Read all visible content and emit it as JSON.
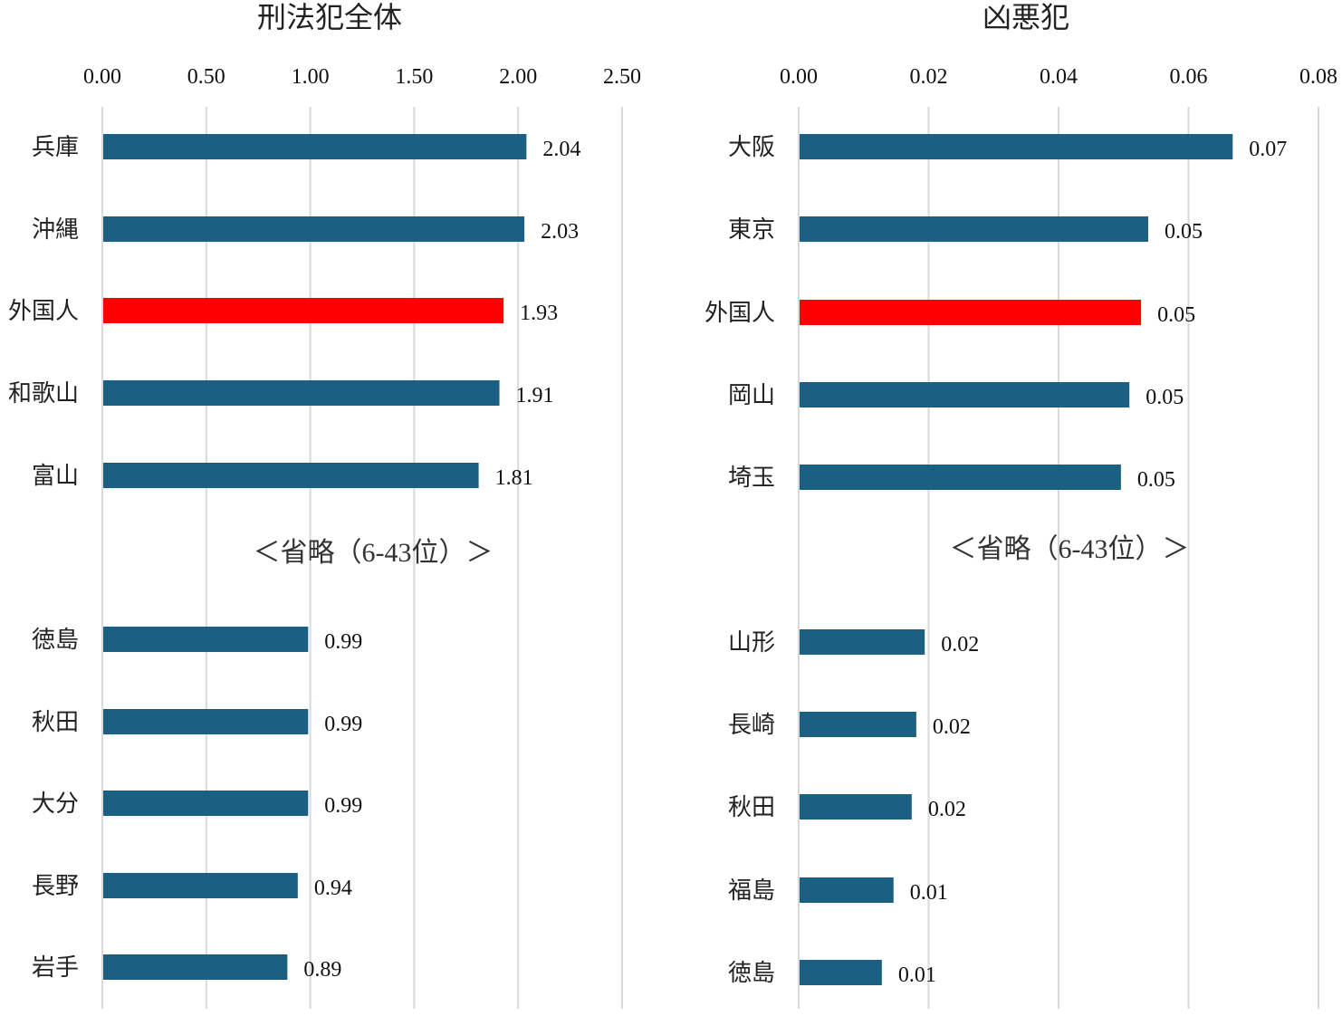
{
  "chart_data": [
    {
      "type": "bar",
      "orientation": "horizontal",
      "title": "刑法犯全体",
      "xlim": [
        0,
        2.5
      ],
      "ticks": [
        "0.00",
        "0.50",
        "1.00",
        "1.50",
        "2.00",
        "2.50"
      ],
      "tick_values": [
        0,
        0.5,
        1.0,
        1.5,
        2.0,
        2.5
      ],
      "grid": true,
      "omitted_note": "＜省略（6-43位）＞",
      "top_categories": [
        "兵庫",
        "沖縄",
        "外国人",
        "和歌山",
        "富山"
      ],
      "top_values": [
        2.04,
        2.03,
        1.93,
        1.91,
        1.81
      ],
      "top_labels": [
        "2.04",
        "2.03",
        "1.93",
        "1.91",
        "1.81"
      ],
      "bottom_categories": [
        "徳島",
        "秋田",
        "大分",
        "長野",
        "岩手"
      ],
      "bottom_values": [
        0.99,
        0.99,
        0.99,
        0.94,
        0.89
      ],
      "bottom_labels": [
        "0.99",
        "0.99",
        "0.99",
        "0.94",
        "0.89"
      ],
      "highlight": "外国人"
    },
    {
      "type": "bar",
      "orientation": "horizontal",
      "title": "凶悪犯",
      "xlim": [
        0,
        0.08
      ],
      "ticks": [
        "0.00",
        "0.02",
        "0.04",
        "0.06",
        "0.08"
      ],
      "tick_values": [
        0,
        0.02,
        0.04,
        0.06,
        0.08
      ],
      "grid": true,
      "omitted_note": "＜省略（6-43位）＞",
      "top_categories": [
        "大阪",
        "東京",
        "外国人",
        "岡山",
        "埼玉"
      ],
      "top_values": [
        0.0668,
        0.0538,
        0.0527,
        0.0509,
        0.0496
      ],
      "top_labels": [
        "0.07",
        "0.05",
        "0.05",
        "0.05",
        "0.05"
      ],
      "bottom_categories": [
        "山形",
        "長崎",
        "秋田",
        "福島",
        "徳島"
      ],
      "bottom_values": [
        0.0194,
        0.0181,
        0.0174,
        0.0146,
        0.0128
      ],
      "bottom_labels": [
        "0.02",
        "0.02",
        "0.02",
        "0.01",
        "0.01"
      ],
      "highlight": "外国人"
    }
  ],
  "colors": {
    "bar": "#1b5f82",
    "highlight": "#ff0000",
    "grid": "#d9d9d9"
  }
}
